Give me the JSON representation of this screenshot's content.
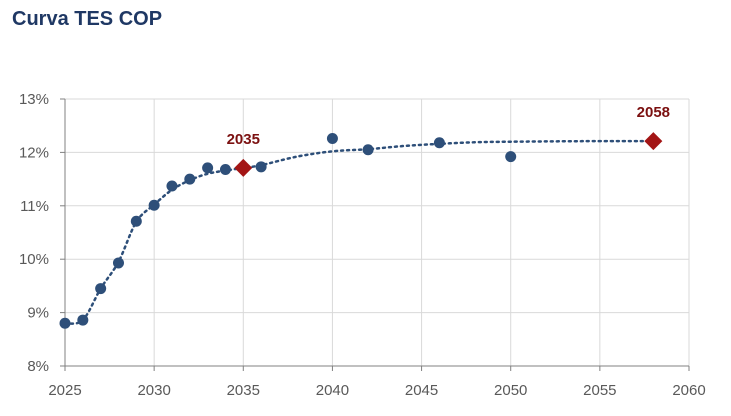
{
  "chart_data": {
    "type": "scatter",
    "title": "Curva TES COP",
    "xlabel": "",
    "ylabel": "",
    "xlim": [
      2025,
      2060
    ],
    "ylim": [
      8,
      13
    ],
    "x_ticks": [
      "2025",
      "2030",
      "2035",
      "2040",
      "2045",
      "2050",
      "2055",
      "2060"
    ],
    "y_ticks": [
      "8%",
      "9%",
      "10%",
      "11%",
      "12%",
      "13%"
    ],
    "grid": true,
    "series": [
      {
        "marker": "circle",
        "color": "#2e4f79",
        "points": [
          {
            "x": 2025.0,
            "y": 8.8
          },
          {
            "x": 2026.0,
            "y": 8.86
          },
          {
            "x": 2027.0,
            "y": 9.45
          },
          {
            "x": 2028.0,
            "y": 9.93
          },
          {
            "x": 2029.0,
            "y": 10.71
          },
          {
            "x": 2030.0,
            "y": 11.01
          },
          {
            "x": 2031.0,
            "y": 11.37
          },
          {
            "x": 2032.0,
            "y": 11.5
          },
          {
            "x": 2033.0,
            "y": 11.71
          },
          {
            "x": 2034.0,
            "y": 11.68
          },
          {
            "x": 2036.0,
            "y": 11.73
          },
          {
            "x": 2040.0,
            "y": 12.26
          },
          {
            "x": 2042.0,
            "y": 12.05
          },
          {
            "x": 2046.0,
            "y": 12.18
          },
          {
            "x": 2050.0,
            "y": 11.92
          }
        ]
      },
      {
        "marker": "diamond",
        "color": "#a31515",
        "points": [
          {
            "x": 2035.0,
            "y": 11.71,
            "label": "2035"
          },
          {
            "x": 2058.0,
            "y": 12.21,
            "label": "2058"
          }
        ]
      }
    ],
    "trendline": {
      "style": "dotted",
      "color": "#2e4f79",
      "points": [
        {
          "x": 2025.0,
          "y": 8.8
        },
        {
          "x": 2026.0,
          "y": 8.86
        },
        {
          "x": 2027.0,
          "y": 9.45
        },
        {
          "x": 2028.0,
          "y": 9.95
        },
        {
          "x": 2029.0,
          "y": 10.7
        },
        {
          "x": 2030.0,
          "y": 11.02
        },
        {
          "x": 2031.0,
          "y": 11.3
        },
        {
          "x": 2032.0,
          "y": 11.48
        },
        {
          "x": 2033.0,
          "y": 11.6
        },
        {
          "x": 2034.0,
          "y": 11.66
        },
        {
          "x": 2035.0,
          "y": 11.71
        },
        {
          "x": 2036.0,
          "y": 11.76
        },
        {
          "x": 2038.0,
          "y": 11.92
        },
        {
          "x": 2040.0,
          "y": 12.02
        },
        {
          "x": 2042.0,
          "y": 12.06
        },
        {
          "x": 2044.0,
          "y": 12.12
        },
        {
          "x": 2046.0,
          "y": 12.16
        },
        {
          "x": 2048.0,
          "y": 12.19
        },
        {
          "x": 2050.0,
          "y": 12.2
        },
        {
          "x": 2054.0,
          "y": 12.21
        },
        {
          "x": 2058.0,
          "y": 12.21
        }
      ]
    }
  }
}
